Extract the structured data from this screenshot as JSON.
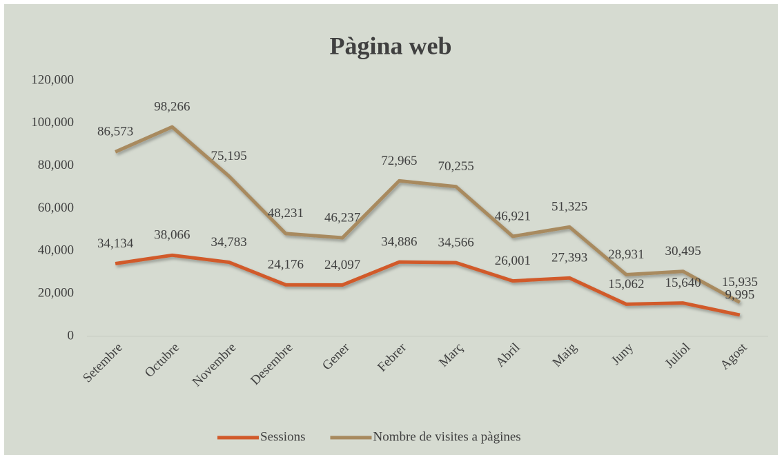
{
  "chart_data": {
    "type": "line",
    "title": "Pàgina web",
    "categories": [
      "Setembre",
      "Octubre",
      "Novembre",
      "Desembre",
      "Gener",
      "Febrer",
      "Març",
      "Abril",
      "Maig",
      "Juny",
      "Juliol",
      "Agost"
    ],
    "series": [
      {
        "name": "Sessions",
        "color": "#d15a2b",
        "values": [
          34134,
          38066,
          34783,
          24176,
          24097,
          34886,
          34566,
          26001,
          27393,
          15062,
          15640,
          9995
        ],
        "value_labels": [
          "34,134",
          "38,066",
          "34,783",
          "24,176",
          "24,097",
          "34,886",
          "34,566",
          "26,001",
          "27,393",
          "15,062",
          "15,640",
          "9,995"
        ]
      },
      {
        "name": "Nombre de visites a pàgines",
        "color": "#a88a5f",
        "values": [
          86573,
          98266,
          75195,
          48231,
          46237,
          72965,
          70255,
          46921,
          51325,
          28931,
          30495,
          15935
        ],
        "value_labels": [
          "86,573",
          "98,266",
          "75,195",
          "48,231",
          "46,237",
          "72,965",
          "70,255",
          "46,921",
          "51,325",
          "28,931",
          "30,495",
          "15,935"
        ]
      }
    ],
    "ylim": [
      0,
      120000
    ],
    "yticks": [
      0,
      {
        "value": 20000,
        "label": "20,000"
      },
      {
        "value": 40000,
        "label": "40,000"
      },
      {
        "value": 60000,
        "label": "60,000"
      },
      {
        "value": 80000,
        "label": "80,000"
      },
      {
        "value": 100000,
        "label": "100,000"
      },
      {
        "value": 120000,
        "label": "120,000"
      }
    ],
    "legend": "bottom"
  }
}
